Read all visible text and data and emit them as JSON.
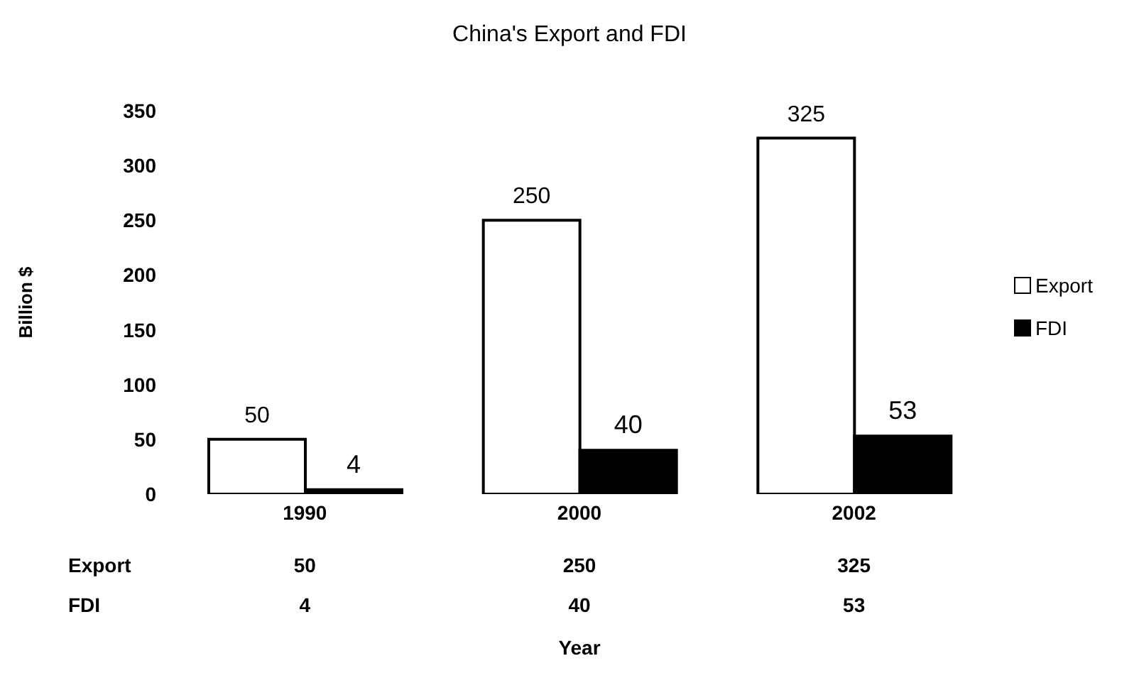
{
  "chart_data": {
    "type": "bar",
    "title": "China's Export and FDI",
    "ylabel": "Billion $",
    "categories": [
      "1990",
      "2000",
      "2002"
    ],
    "series": [
      {
        "name": "Export",
        "color": "#ffffff",
        "values": [
          50,
          250,
          325
        ]
      },
      {
        "name": "FDI",
        "color": "#000000",
        "values": [
          4,
          40,
          53
        ]
      }
    ],
    "annotations": [
      "50",
      "250",
      "325",
      "4",
      "40",
      "53",
      "Year"
    ],
    "ylim": [
      0,
      350
    ],
    "yticks": [
      0,
      50,
      100,
      150,
      200,
      250,
      300,
      350
    ],
    "grid": false,
    "legend": "right",
    "data_labels": true
  }
}
